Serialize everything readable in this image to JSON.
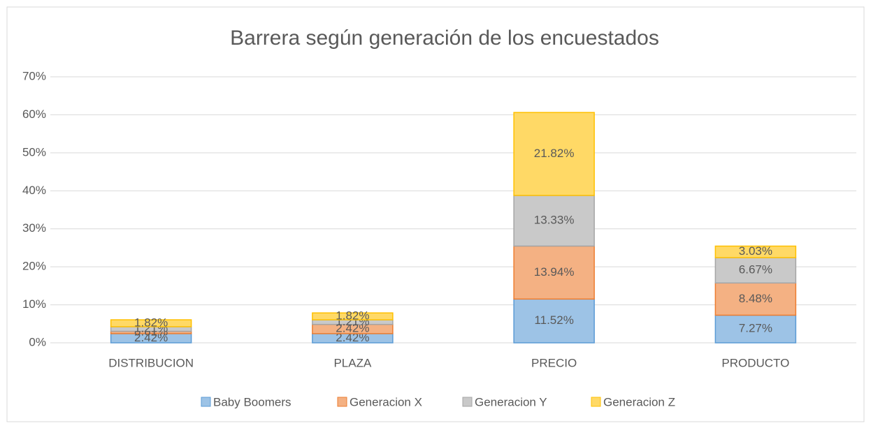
{
  "chart_data": {
    "type": "stacked_bar",
    "title": "Barrera según generación de los encuestados",
    "categories": [
      "DISTRIBUCION",
      "PLAZA",
      "PRECIO",
      "PRODUCTO"
    ],
    "series": [
      {
        "name": "Baby Boomers",
        "color": "#9dc3e6",
        "border": "#5b9bd5",
        "values": [
          2.42,
          2.42,
          11.52,
          7.27
        ],
        "value_labels": [
          "2.42%",
          "2.42%",
          "11.52%",
          "7.27%"
        ]
      },
      {
        "name": "Generacion X",
        "color": "#f4b183",
        "border": "#ed7d31",
        "values": [
          0.61,
          2.42,
          13.94,
          8.48
        ],
        "value_labels": [
          "0.61%",
          "2.42%",
          "13.94%",
          "8.48%"
        ]
      },
      {
        "name": "Generacion Y",
        "color": "#c9c9c9",
        "border": "#a5a5a5",
        "values": [
          1.21,
          1.21,
          13.33,
          6.67
        ],
        "value_labels": [
          "1.21%",
          "1.21%",
          "13.33%",
          "6.67%"
        ]
      },
      {
        "name": "Generacion Z",
        "color": "#ffd966",
        "border": "#ffc000",
        "values": [
          1.82,
          1.82,
          21.82,
          3.03
        ],
        "value_labels": [
          "1.82%",
          "1.82%",
          "21.82%",
          "3.03%"
        ]
      }
    ],
    "ylim": [
      0,
      70
    ],
    "yticks": [
      {
        "value": 0,
        "label": "0%"
      },
      {
        "value": 10,
        "label": "10%"
      },
      {
        "value": 20,
        "label": "20%"
      },
      {
        "value": 30,
        "label": "30%"
      },
      {
        "value": 40,
        "label": "40%"
      },
      {
        "value": 50,
        "label": "50%"
      },
      {
        "value": 60,
        "label": "60%"
      },
      {
        "value": 70,
        "label": "70%"
      }
    ],
    "grid": true,
    "legend": "bottom"
  }
}
